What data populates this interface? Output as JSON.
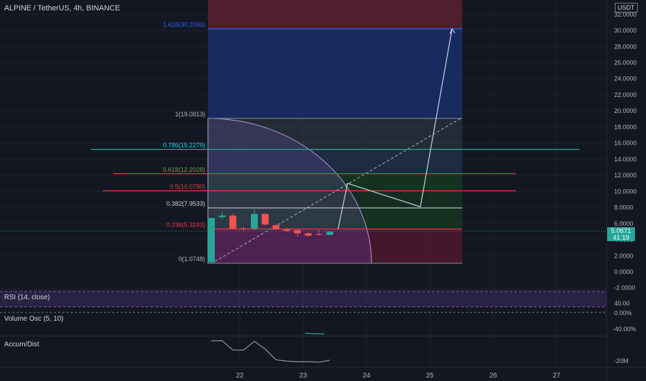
{
  "header": {
    "symbol_line": "ALPINE / TetherUS, 4h, BINANCE"
  },
  "currency_label": "USDT",
  "current_price": {
    "value": "5.0671",
    "countdown": "41:19"
  },
  "colors": {
    "background": "#131722",
    "up": "#26a69a",
    "down": "#ef5350",
    "fib_blue": "#2962ff",
    "fib_red": "#f23645",
    "fib_teal": "#22ab94",
    "rsi_band": "#7e57c2",
    "accum": "#9598a1"
  },
  "chart_data": [
    {
      "type": "candlestick",
      "title": "ALPINE / TetherUS, 4h, BINANCE",
      "x_tick_labels": [
        "22",
        "23",
        "24",
        "25",
        "26",
        "27"
      ],
      "y_tick_labels": [
        "32.0000",
        "30.0000",
        "28.0000",
        "26.0000",
        "24.0000",
        "22.0000",
        "20.0000",
        "18.0000",
        "16.0000",
        "14.0000",
        "12.0000",
        "10.0000",
        "8.0000",
        "6.0000",
        "4.0000",
        "2.0000",
        "0.0000",
        "-2.0000"
      ],
      "ylim": [
        -2,
        33
      ],
      "candles": [
        {
          "x": 21.55,
          "open": 1.2,
          "high": 6.7,
          "low": 1.0,
          "close": 6.7
        },
        {
          "x": 21.72,
          "open": 6.8,
          "high": 7.5,
          "low": 6.5,
          "close": 7.0
        },
        {
          "x": 21.89,
          "open": 7.0,
          "high": 7.3,
          "low": 5.4,
          "close": 5.4
        },
        {
          "x": 22.06,
          "open": 5.4,
          "high": 5.6,
          "low": 5.1,
          "close": 5.3
        },
        {
          "x": 22.23,
          "open": 5.4,
          "high": 7.8,
          "low": 5.2,
          "close": 7.2
        },
        {
          "x": 22.4,
          "open": 7.2,
          "high": 7.3,
          "low": 5.8,
          "close": 5.9
        },
        {
          "x": 22.57,
          "open": 5.8,
          "high": 6.0,
          "low": 5.2,
          "close": 5.3
        },
        {
          "x": 22.74,
          "open": 5.3,
          "high": 5.5,
          "low": 5.0,
          "close": 5.1
        },
        {
          "x": 22.91,
          "open": 5.2,
          "high": 5.4,
          "low": 4.4,
          "close": 4.8
        },
        {
          "x": 23.08,
          "open": 4.8,
          "high": 5.0,
          "low": 4.4,
          "close": 4.5
        },
        {
          "x": 23.25,
          "open": 4.7,
          "high": 5.3,
          "low": 4.5,
          "close": 4.6
        },
        {
          "x": 23.42,
          "open": 4.6,
          "high": 5.1,
          "low": 4.5,
          "close": 5.0
        }
      ],
      "fib_retracement": {
        "levels": [
          {
            "label": "0(1.0748)",
            "value": 1.0748
          },
          {
            "label": "0.236(5.3243)",
            "value": 5.3243
          },
          {
            "label": "0.382(7.9533)",
            "value": 7.9533
          },
          {
            "label": "0.5(10.0780)",
            "value": 10.078
          },
          {
            "label": "0.618(12.2028)",
            "value": 12.2028
          },
          {
            "label": "0.786(15.2279)",
            "value": 15.2279
          },
          {
            "label": "1(19.0813)",
            "value": 19.0813
          },
          {
            "label": "1.618(30.2093)",
            "value": 30.2093
          }
        ]
      },
      "projection_path": [
        {
          "x": 23.55,
          "y": 5.3
        },
        {
          "x": 23.7,
          "y": 11.0
        },
        {
          "x": 24.85,
          "y": 8.1
        },
        {
          "x": 25.35,
          "y": 30.2
        }
      ]
    },
    {
      "type": "line",
      "title": "RSI (14, close)",
      "y_tick_labels": [
        "40.00",
        "0.00%"
      ]
    },
    {
      "type": "line",
      "title": "Volume Osc (5, 10)",
      "y_tick_labels": [
        "-40.00%"
      ]
    },
    {
      "type": "line",
      "title": "Accum/Dist",
      "y_tick_labels": [
        "-20M"
      ],
      "values": [
        {
          "x": 21.55,
          "y": 0.0
        },
        {
          "x": 21.72,
          "y": 0.02
        },
        {
          "x": 21.89,
          "y": -0.95
        },
        {
          "x": 22.06,
          "y": -0.95
        },
        {
          "x": 22.23,
          "y": -0.05
        },
        {
          "x": 22.4,
          "y": -0.85
        },
        {
          "x": 22.57,
          "y": -1.95
        },
        {
          "x": 22.74,
          "y": -2.1
        },
        {
          "x": 22.91,
          "y": -2.15
        },
        {
          "x": 23.08,
          "y": -2.15
        },
        {
          "x": 23.25,
          "y": -2.2
        },
        {
          "x": 23.42,
          "y": -2.0
        }
      ]
    }
  ]
}
